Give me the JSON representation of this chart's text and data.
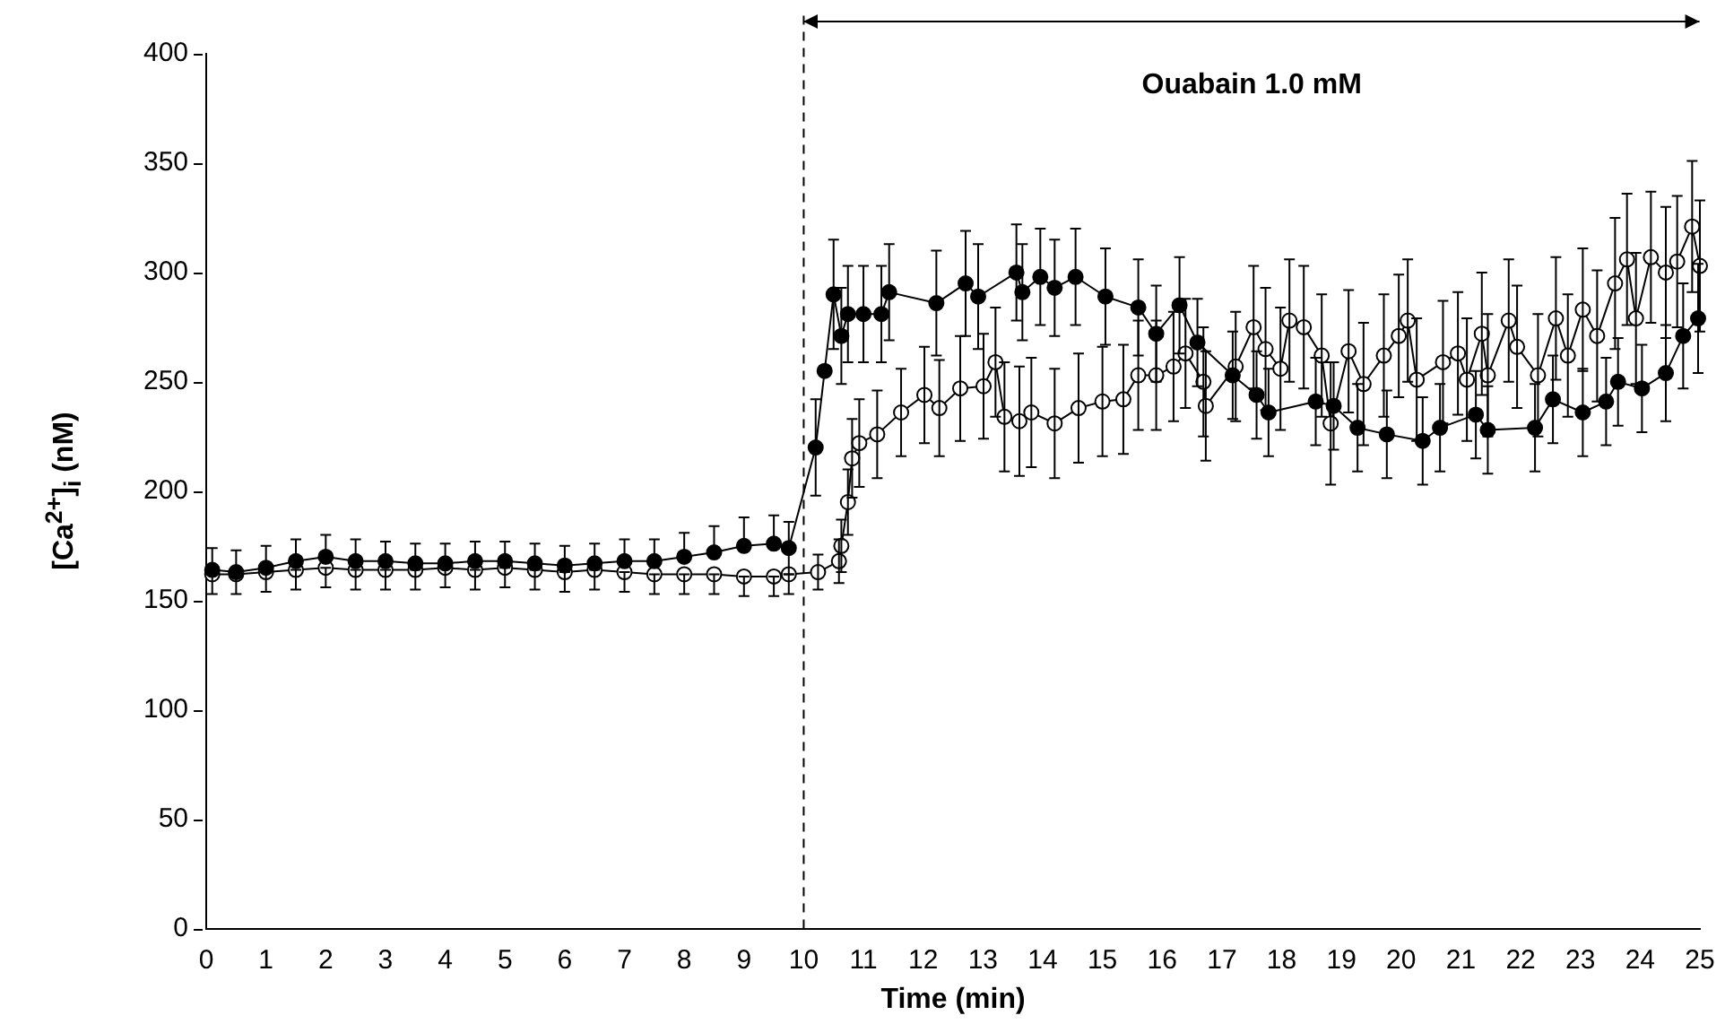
{
  "chart_data": {
    "type": "line",
    "xlabel": "Time (min)",
    "ylabel": "[Ca$^{2+}$]$_{i}$ (nM)",
    "xlim": [
      0,
      25
    ],
    "xticks": [
      0,
      1,
      2,
      3,
      4,
      5,
      6,
      7,
      8,
      9,
      10,
      11,
      12,
      13,
      14,
      15,
      16,
      17,
      18,
      19,
      20,
      21,
      22,
      23,
      24,
      25
    ],
    "ylim": [
      0,
      400
    ],
    "yticks": [
      0,
      50,
      100,
      150,
      200,
      250,
      300,
      350,
      400
    ],
    "grid": false,
    "legend": false,
    "marker": "circle",
    "line_style": "solid",
    "ref_lines": [
      {
        "axis": "x",
        "value": 10,
        "line_style": "dashed"
      }
    ],
    "annotations": [
      "Ouabain 1.0 mM"
    ],
    "series": [
      {
        "color": "#000000",
        "x": [
          0.1,
          0.5,
          1,
          1.5,
          2,
          2.5,
          3,
          3.5,
          4,
          4.5,
          5,
          5.5,
          6,
          6.5,
          7,
          7.5,
          8,
          8.5,
          9,
          9.5,
          9.75,
          10.2,
          10.35,
          10.5,
          10.63,
          10.74,
          11.0,
          11.3,
          11.43,
          12.22,
          12.71,
          12.92,
          13.56,
          13.66,
          13.96,
          14.2,
          14.55,
          15.05,
          15.6,
          15.9,
          16.29,
          16.59,
          17.18,
          17.58,
          17.78,
          18.57,
          18.87,
          19.27,
          19.76,
          20.36,
          20.65,
          21.25,
          21.45,
          22.24,
          22.54,
          23.04,
          23.43,
          23.63,
          24.03,
          24.43,
          24.72,
          24.97
        ],
        "values": [
          164,
          163,
          165,
          168,
          170,
          168,
          168,
          167,
          167,
          168,
          168,
          167,
          166,
          167,
          168,
          168,
          170,
          172,
          175,
          176,
          174,
          220,
          255,
          290,
          271,
          281,
          281,
          281,
          291,
          286,
          295,
          289,
          300,
          291,
          298,
          293,
          298,
          289,
          284,
          272,
          285,
          268,
          253,
          244,
          236,
          241,
          239,
          229,
          226,
          223,
          229,
          235,
          228,
          229,
          242,
          236,
          241,
          250,
          247,
          254,
          271,
          279
        ],
        "errors": [
          [
            164,
            174
          ],
          [
            163,
            173
          ],
          [
            165,
            175
          ],
          [
            168,
            178
          ],
          [
            170,
            180
          ],
          [
            168,
            178
          ],
          [
            168,
            177
          ],
          [
            167,
            176
          ],
          [
            167,
            176
          ],
          [
            168,
            177
          ],
          [
            168,
            177
          ],
          [
            167,
            176
          ],
          [
            166,
            175
          ],
          [
            167,
            176
          ],
          [
            168,
            178
          ],
          [
            168,
            178
          ],
          [
            170,
            181
          ],
          [
            172,
            184
          ],
          [
            175,
            188
          ],
          [
            176,
            189
          ],
          12,
          22,
          null,
          25,
          22,
          22,
          22,
          22,
          22,
          24,
          24,
          24,
          22,
          22,
          22,
          22,
          22,
          22,
          22,
          22,
          22,
          20,
          20,
          20,
          20,
          20,
          20,
          20,
          20,
          20,
          20,
          20,
          20,
          20,
          20,
          20,
          20,
          20,
          20,
          22,
          24,
          25
        ]
      },
      {
        "color": "#ffffff",
        "x": [
          0.1,
          0.5,
          1,
          1.5,
          2,
          2.5,
          3,
          3.5,
          4,
          4.5,
          5,
          5.5,
          6,
          6.5,
          7,
          7.5,
          8,
          8.5,
          9,
          9.5,
          9.75,
          10.24,
          10.59,
          10.63,
          10.74,
          10.81,
          10.93,
          11.23,
          11.63,
          12.02,
          12.27,
          12.62,
          13.01,
          13.21,
          13.36,
          13.61,
          13.81,
          14.2,
          14.6,
          15.0,
          15.35,
          15.6,
          15.9,
          16.19,
          16.39,
          16.69,
          16.73,
          17.23,
          17.53,
          17.73,
          17.98,
          18.13,
          18.37,
          18.67,
          18.82,
          19.12,
          19.37,
          19.71,
          19.96,
          20.11,
          20.26,
          20.7,
          20.95,
          21.1,
          21.35,
          21.45,
          21.8,
          21.94,
          22.29,
          22.59,
          22.79,
          23.04,
          23.28,
          23.58,
          23.78,
          23.93,
          24.18,
          24.43,
          24.62,
          24.87,
          25.0
        ],
        "values": [
          162,
          162,
          163,
          164,
          165,
          164,
          164,
          164,
          165,
          164,
          165,
          164,
          163,
          164,
          163,
          162,
          162,
          162,
          161,
          161,
          162,
          163,
          168,
          175,
          195,
          215,
          222,
          226,
          236,
          244,
          238,
          247,
          248,
          259,
          234,
          232,
          236,
          231,
          238,
          241,
          242,
          253,
          253,
          257,
          263,
          250,
          239,
          257,
          275,
          265,
          256,
          278,
          275,
          262,
          231,
          264,
          249,
          262,
          271,
          278,
          251,
          259,
          263,
          251,
          272,
          253,
          278,
          266,
          253,
          279,
          262,
          283,
          271,
          295,
          306,
          279,
          307,
          300,
          305,
          321,
          303
        ],
        "errors": [
          [
            153,
            162
          ],
          [
            153,
            162
          ],
          [
            154,
            163
          ],
          [
            155,
            164
          ],
          [
            156,
            165
          ],
          [
            155,
            164
          ],
          [
            155,
            164
          ],
          [
            155,
            164
          ],
          [
            156,
            165
          ],
          [
            155,
            164
          ],
          [
            156,
            165
          ],
          [
            155,
            164
          ],
          [
            154,
            163
          ],
          [
            155,
            164
          ],
          [
            154,
            163
          ],
          [
            153,
            162
          ],
          [
            153,
            162
          ],
          [
            153,
            162
          ],
          [
            152,
            161
          ],
          [
            152,
            161
          ],
          [
            153,
            162
          ],
          8,
          10,
          12,
          15,
          18,
          20,
          20,
          20,
          22,
          22,
          24,
          24,
          25,
          25,
          25,
          25,
          25,
          25,
          25,
          25,
          25,
          25,
          25,
          25,
          25,
          25,
          25,
          28,
          28,
          28,
          28,
          28,
          28,
          28,
          28,
          28,
          28,
          28,
          28,
          28,
          28,
          28,
          28,
          28,
          28,
          28,
          28,
          28,
          28,
          28,
          28,
          30,
          30,
          30,
          30,
          30,
          30,
          30,
          30,
          30
        ]
      }
    ]
  }
}
